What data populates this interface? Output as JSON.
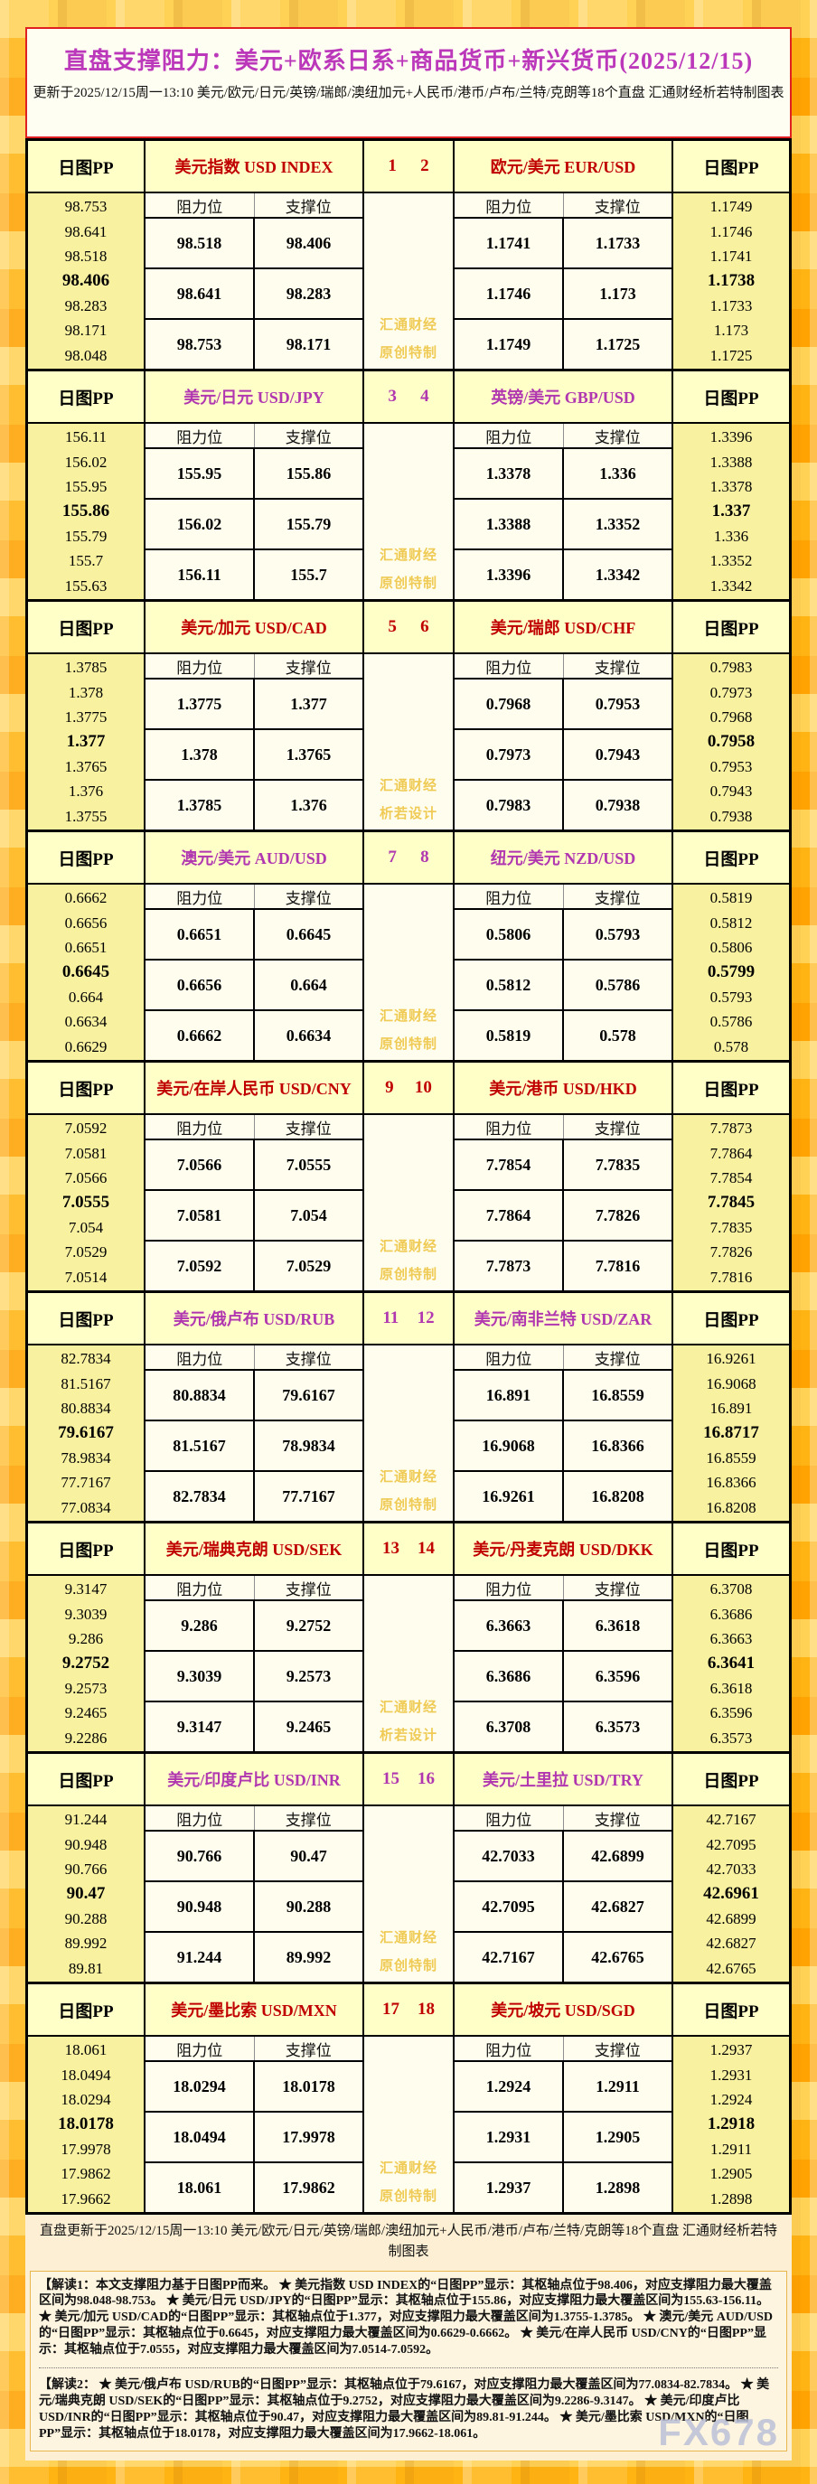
{
  "header": {
    "title": "直盘支撑阻力：美元+欧系日系+商品货币+新兴货币(2025/12/15)",
    "subtitle": "更新于2025/12/15周一13:10 美元/欧元/日元/英镑/瑞郎/澳纽加元+人民币/港币/卢布/兰特/克朗等18个直盘 汇通财经析若特制图表"
  },
  "labels": {
    "pp": "日图PP",
    "resistance": "阻力位",
    "support": "支撑位"
  },
  "colors": {
    "red_pair": "#C00000",
    "purple_pair": "#B037B0",
    "title": "#BB38BB",
    "watermark_gold": "#EFCB55",
    "pp_column_bg": "#F8F1A0",
    "header_bg": "#FFFFC8",
    "cell_bg": "#FFFDEE"
  },
  "blocks": [
    {
      "color": "red",
      "nums": [
        "1",
        "2"
      ],
      "left_pair": {
        "name": "美元指数 USD INDEX",
        "rows": [
          [
            "98.518",
            "98.406"
          ],
          [
            "98.641",
            "98.283"
          ],
          [
            "98.753",
            "98.171"
          ]
        ]
      },
      "right_pair": {
        "name": "欧元/美元 EUR/USD",
        "rows": [
          [
            "1.1741",
            "1.1733"
          ],
          [
            "1.1746",
            "1.173"
          ],
          [
            "1.1749",
            "1.1725"
          ]
        ]
      },
      "left_pp": [
        "98.753",
        "98.641",
        "98.518",
        "98.406",
        "98.283",
        "98.171",
        "98.048"
      ],
      "right_pp": [
        "1.1749",
        "1.1746",
        "1.1741",
        "1.1738",
        "1.1733",
        "1.173",
        "1.1725"
      ],
      "watermark": [
        "汇通财经",
        "原创特制"
      ]
    },
    {
      "color": "purple",
      "nums": [
        "3",
        "4"
      ],
      "left_pair": {
        "name": "美元/日元 USD/JPY",
        "rows": [
          [
            "155.95",
            "155.86"
          ],
          [
            "156.02",
            "155.79"
          ],
          [
            "156.11",
            "155.7"
          ]
        ]
      },
      "right_pair": {
        "name": "英镑/美元 GBP/USD",
        "rows": [
          [
            "1.3378",
            "1.336"
          ],
          [
            "1.3388",
            "1.3352"
          ],
          [
            "1.3396",
            "1.3342"
          ]
        ]
      },
      "left_pp": [
        "156.11",
        "156.02",
        "155.95",
        "155.86",
        "155.79",
        "155.7",
        "155.63"
      ],
      "right_pp": [
        "1.3396",
        "1.3388",
        "1.3378",
        "1.337",
        "1.336",
        "1.3352",
        "1.3342"
      ],
      "watermark": [
        "汇通财经",
        "原创特制"
      ]
    },
    {
      "color": "red",
      "nums": [
        "5",
        "6"
      ],
      "left_pair": {
        "name": "美元/加元 USD/CAD",
        "rows": [
          [
            "1.3775",
            "1.377"
          ],
          [
            "1.378",
            "1.3765"
          ],
          [
            "1.3785",
            "1.376"
          ]
        ]
      },
      "right_pair": {
        "name": "美元/瑞郎 USD/CHF",
        "rows": [
          [
            "0.7968",
            "0.7953"
          ],
          [
            "0.7973",
            "0.7943"
          ],
          [
            "0.7983",
            "0.7938"
          ]
        ]
      },
      "left_pp": [
        "1.3785",
        "1.378",
        "1.3775",
        "1.377",
        "1.3765",
        "1.376",
        "1.3755"
      ],
      "right_pp": [
        "0.7983",
        "0.7973",
        "0.7968",
        "0.7958",
        "0.7953",
        "0.7943",
        "0.7938"
      ],
      "watermark": [
        "汇通财经",
        "析若设计"
      ]
    },
    {
      "color": "purple",
      "nums": [
        "7",
        "8"
      ],
      "left_pair": {
        "name": "澳元/美元 AUD/USD",
        "rows": [
          [
            "0.6651",
            "0.6645"
          ],
          [
            "0.6656",
            "0.664"
          ],
          [
            "0.6662",
            "0.6634"
          ]
        ]
      },
      "right_pair": {
        "name": "纽元/美元 NZD/USD",
        "rows": [
          [
            "0.5806",
            "0.5793"
          ],
          [
            "0.5812",
            "0.5786"
          ],
          [
            "0.5819",
            "0.578"
          ]
        ]
      },
      "left_pp": [
        "0.6662",
        "0.6656",
        "0.6651",
        "0.6645",
        "0.664",
        "0.6634",
        "0.6629"
      ],
      "right_pp": [
        "0.5819",
        "0.5812",
        "0.5806",
        "0.5799",
        "0.5793",
        "0.5786",
        "0.578"
      ],
      "watermark": [
        "汇通财经",
        "原创特制"
      ]
    },
    {
      "color": "red",
      "nums": [
        "9",
        "10"
      ],
      "left_pair": {
        "name": "美元/在岸人民币 USD/CNY",
        "rows": [
          [
            "7.0566",
            "7.0555"
          ],
          [
            "7.0581",
            "7.054"
          ],
          [
            "7.0592",
            "7.0529"
          ]
        ]
      },
      "right_pair": {
        "name": "美元/港币 USD/HKD",
        "rows": [
          [
            "7.7854",
            "7.7835"
          ],
          [
            "7.7864",
            "7.7826"
          ],
          [
            "7.7873",
            "7.7816"
          ]
        ]
      },
      "left_pp": [
        "7.0592",
        "7.0581",
        "7.0566",
        "7.0555",
        "7.054",
        "7.0529",
        "7.0514"
      ],
      "right_pp": [
        "7.7873",
        "7.7864",
        "7.7854",
        "7.7845",
        "7.7835",
        "7.7826",
        "7.7816"
      ],
      "watermark": [
        "汇通财经",
        "原创特制"
      ]
    },
    {
      "color": "purple",
      "nums": [
        "11",
        "12"
      ],
      "left_pair": {
        "name": "美元/俄卢布 USD/RUB",
        "rows": [
          [
            "80.8834",
            "79.6167"
          ],
          [
            "81.5167",
            "78.9834"
          ],
          [
            "82.7834",
            "77.7167"
          ]
        ]
      },
      "right_pair": {
        "name": "美元/南非兰特 USD/ZAR",
        "rows": [
          [
            "16.891",
            "16.8559"
          ],
          [
            "16.9068",
            "16.8366"
          ],
          [
            "16.9261",
            "16.8208"
          ]
        ]
      },
      "left_pp": [
        "82.7834",
        "81.5167",
        "80.8834",
        "79.6167",
        "78.9834",
        "77.7167",
        "77.0834"
      ],
      "right_pp": [
        "16.9261",
        "16.9068",
        "16.891",
        "16.8717",
        "16.8559",
        "16.8366",
        "16.8208"
      ],
      "watermark": [
        "汇通财经",
        "原创特制"
      ]
    },
    {
      "color": "red",
      "nums": [
        "13",
        "14"
      ],
      "left_pair": {
        "name": "美元/瑞典克朗 USD/SEK",
        "rows": [
          [
            "9.286",
            "9.2752"
          ],
          [
            "9.3039",
            "9.2573"
          ],
          [
            "9.3147",
            "9.2465"
          ]
        ]
      },
      "right_pair": {
        "name": "美元/丹麦克朗 USD/DKK",
        "rows": [
          [
            "6.3663",
            "6.3618"
          ],
          [
            "6.3686",
            "6.3596"
          ],
          [
            "6.3708",
            "6.3573"
          ]
        ]
      },
      "left_pp": [
        "9.3147",
        "9.3039",
        "9.286",
        "9.2752",
        "9.2573",
        "9.2465",
        "9.2286"
      ],
      "right_pp": [
        "6.3708",
        "6.3686",
        "6.3663",
        "6.3641",
        "6.3618",
        "6.3596",
        "6.3573"
      ],
      "watermark": [
        "汇通财经",
        "析若设计"
      ]
    },
    {
      "color": "purple",
      "nums": [
        "15",
        "16"
      ],
      "left_pair": {
        "name": "美元/印度卢比 USD/INR",
        "rows": [
          [
            "90.766",
            "90.47"
          ],
          [
            "90.948",
            "90.288"
          ],
          [
            "91.244",
            "89.992"
          ]
        ]
      },
      "right_pair": {
        "name": "美元/土里拉 USD/TRY",
        "rows": [
          [
            "42.7033",
            "42.6899"
          ],
          [
            "42.7095",
            "42.6827"
          ],
          [
            "42.7167",
            "42.6765"
          ]
        ]
      },
      "left_pp": [
        "91.244",
        "90.948",
        "90.766",
        "90.47",
        "90.288",
        "89.992",
        "89.81"
      ],
      "right_pp": [
        "42.7167",
        "42.7095",
        "42.7033",
        "42.6961",
        "42.6899",
        "42.6827",
        "42.6765"
      ],
      "watermark": [
        "汇通财经",
        "原创特制"
      ]
    },
    {
      "color": "red",
      "nums": [
        "17",
        "18"
      ],
      "left_pair": {
        "name": "美元/墨比索 USD/MXN",
        "rows": [
          [
            "18.0294",
            "18.0178"
          ],
          [
            "18.0494",
            "17.9978"
          ],
          [
            "18.061",
            "17.9862"
          ]
        ]
      },
      "right_pair": {
        "name": "美元/坡元 USD/SGD",
        "rows": [
          [
            "1.2924",
            "1.2911"
          ],
          [
            "1.2931",
            "1.2905"
          ],
          [
            "1.2937",
            "1.2898"
          ]
        ]
      },
      "left_pp": [
        "18.061",
        "18.0494",
        "18.0294",
        "18.0178",
        "17.9978",
        "17.9862",
        "17.9662"
      ],
      "right_pp": [
        "1.2937",
        "1.2931",
        "1.2924",
        "1.2918",
        "1.2911",
        "1.2905",
        "1.2898"
      ],
      "watermark": [
        "汇通财经",
        "原创特制"
      ]
    }
  ],
  "footer_line": "直盘更新于2025/12/15周一13:10 美元/欧元/日元/英镑/瑞郎/澳纽加元+人民币/港币/卢布/兰特/克朗等18个直盘 汇通财经析若特制图表",
  "notes": [
    "【解读1：本文支撑阻力基于日图PP而来。 ★ 美元指数 USD INDEX的“日图PP”显示：其枢轴点位于98.406，对应支撑阻力最大覆盖区间为98.048-98.753。 ★ 美元/日元 USD/JPY的“日图PP”显示：其枢轴点位于155.86，对应支撑阻力最大覆盖区间为155.63-156.11。 ★ 美元/加元 USD/CAD的“日图PP”显示：其枢轴点位于1.377，对应支撑阻力最大覆盖区间为1.3755-1.3785。 ★ 澳元/美元 AUD/USD的“日图PP”显示：其枢轴点位于0.6645，对应支撑阻力最大覆盖区间为0.6629-0.6662。 ★ 美元/在岸人民币 USD/CNY的“日图PP”显示：其枢轴点位于7.0555，对应支撑阻力最大覆盖区间为7.0514-7.0592。",
    "【解读2： ★ 美元/俄卢布 USD/RUB的“日图PP”显示：其枢轴点位于79.6167，对应支撑阻力最大覆盖区间为77.0834-82.7834。 ★ 美元/瑞典克朗 USD/SEK的“日图PP”显示：其枢轴点位于9.2752，对应支撑阻力最大覆盖区间为9.2286-9.3147。 ★ 美元/印度卢比 USD/INR的“日图PP”显示：其枢轴点位于90.47，对应支撑阻力最大覆盖区间为89.81-91.244。 ★ 美元/墨比索 USD/MXN的“日图PP”显示：其枢轴点位于18.0178，对应支撑阻力最大覆盖区间为17.9662-18.061。"
  ],
  "brand_watermark": "FX678"
}
